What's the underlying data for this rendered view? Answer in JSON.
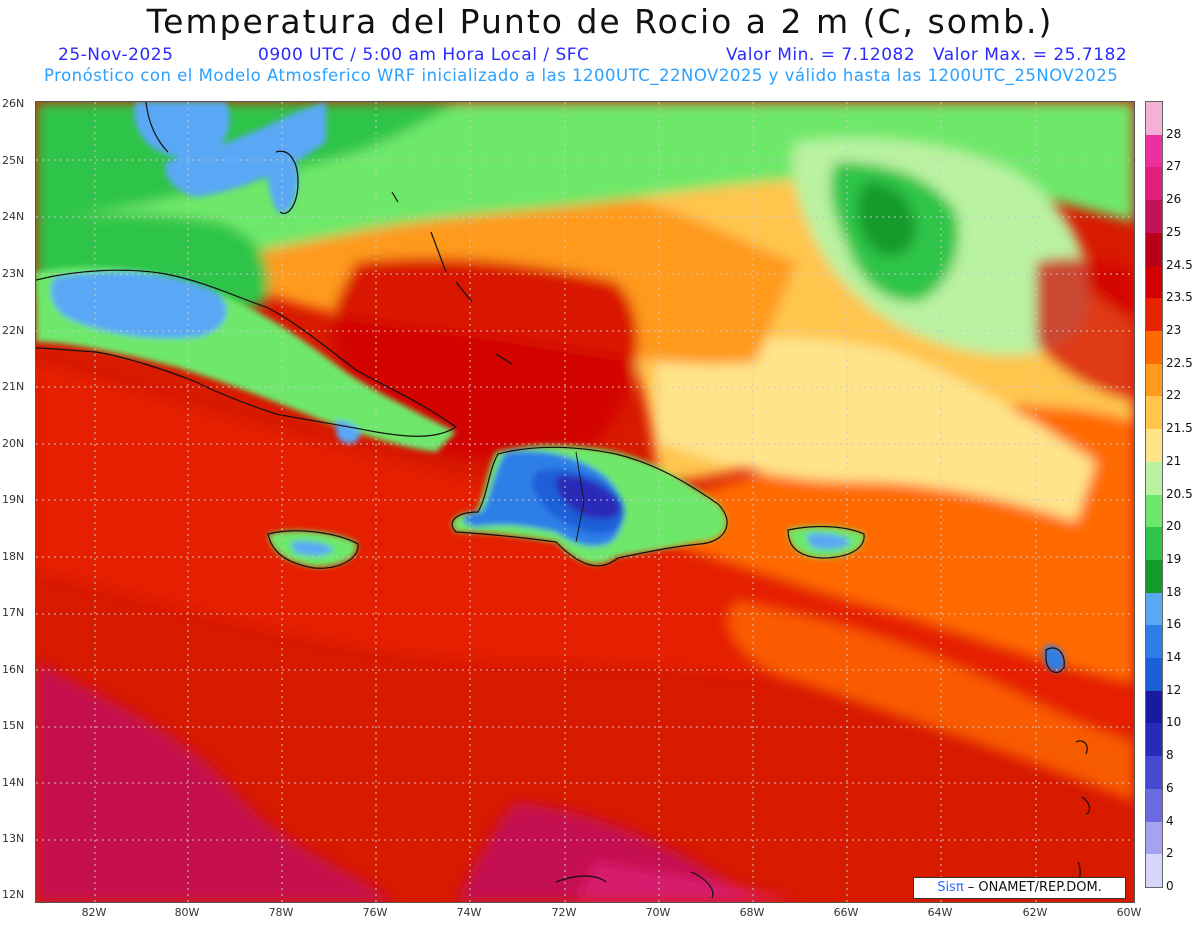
{
  "header": {
    "title": "Temperatura del Punto de Rocio a 2 m (C, somb.)",
    "date": "25-Nov-2025",
    "time": "0900 UTC / 5:00 am Hora Local / SFC",
    "valor_min": "Valor Min. = 7.12082",
    "valor_max": "Valor Max. = 25.7182",
    "model_line": "Pronóstico con el Modelo Atmosferico WRF inicializado a las 1200UTC_22NOV2025 y válido hasta las  1200UTC_25NOV2025"
  },
  "axes": {
    "lat_labels": [
      "26N",
      "25N",
      "24N",
      "23N",
      "22N",
      "21N",
      "20N",
      "19N",
      "18N",
      "17N",
      "16N",
      "15N",
      "14N",
      "13N",
      "12N"
    ],
    "lon_labels": [
      "82W",
      "80W",
      "78W",
      "76W",
      "74W",
      "72W",
      "70W",
      "68W",
      "66W",
      "64W",
      "62W",
      "60W"
    ]
  },
  "colorbar": {
    "labels": [
      "28",
      "27",
      "26",
      "25",
      "24.5",
      "23.5",
      "23",
      "22.5",
      "22",
      "21.5",
      "21",
      "20.5",
      "20",
      "19",
      "18",
      "16",
      "14",
      "12",
      "10",
      "8",
      "6",
      "4",
      "2",
      "0"
    ],
    "colors": [
      "#f5b0d8",
      "#ee2fa0",
      "#e0207a",
      "#c2125a",
      "#b8001a",
      "#d20000",
      "#e82300",
      "#ff6a00",
      "#ff9a1a",
      "#ffc54d",
      "#ffe48a",
      "#b9f2a0",
      "#6ee86a",
      "#2fc44a",
      "#159a2a",
      "#5aa8f5",
      "#2e7ee8",
      "#1c5ed8",
      "#1a1aa0",
      "#2a2ab8",
      "#4848d0",
      "#6c6ce2",
      "#a3a3ef",
      "#d6d6fa"
    ]
  },
  "credit": {
    "brand": "Sisπ",
    "text": " – ONAMET/REP.DOM."
  }
}
